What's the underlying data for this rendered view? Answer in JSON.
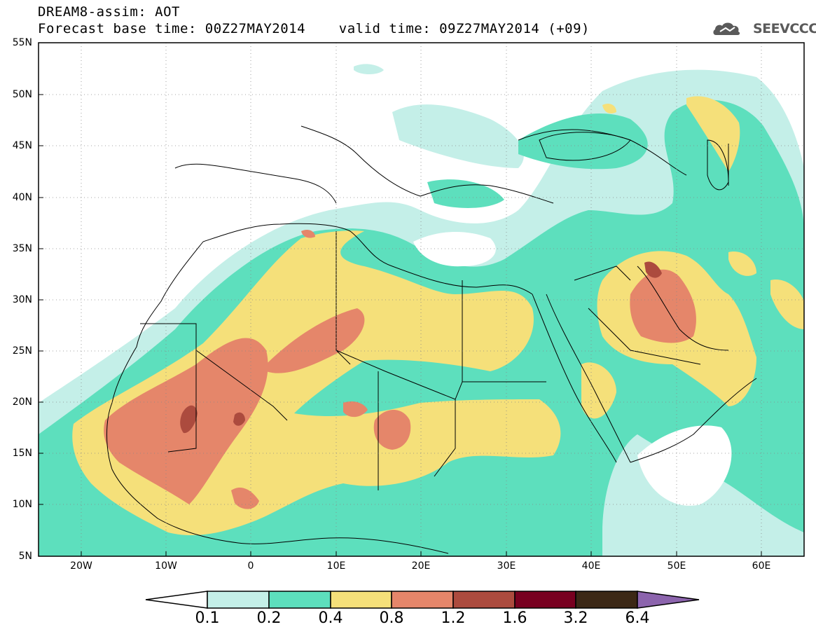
{
  "header": {
    "line1": "DREAM8-assim: AOT",
    "line2": "Forecast base time: 00Z27MAY2014    valid time: 09Z27MAY2014 (+09)"
  },
  "logo": {
    "text": "SEEVCCC",
    "icon": "cloud-logo-icon"
  },
  "map": {
    "lon_range": [
      -25,
      65
    ],
    "lat_range": [
      5,
      55
    ],
    "lat_labels": [
      "55N",
      "50N",
      "45N",
      "40N",
      "35N",
      "30N",
      "25N",
      "20N",
      "15N",
      "10N",
      "5N"
    ],
    "lon_labels": [
      "20W",
      "10W",
      "0",
      "10E",
      "20E",
      "30E",
      "40E",
      "50E",
      "60E"
    ],
    "variable": "AOT"
  },
  "colorbar": {
    "labels": [
      "0.1",
      "0.2",
      "0.4",
      "0.8",
      "1.2",
      "1.6",
      "3.2",
      "6.4"
    ],
    "colors": [
      "#ffffff",
      "#c4efe8",
      "#5ddfbd",
      "#f5e07a",
      "#e5866a",
      "#ac4b3e",
      "#780020",
      "#3c2816",
      "#8c64ad"
    ]
  }
}
